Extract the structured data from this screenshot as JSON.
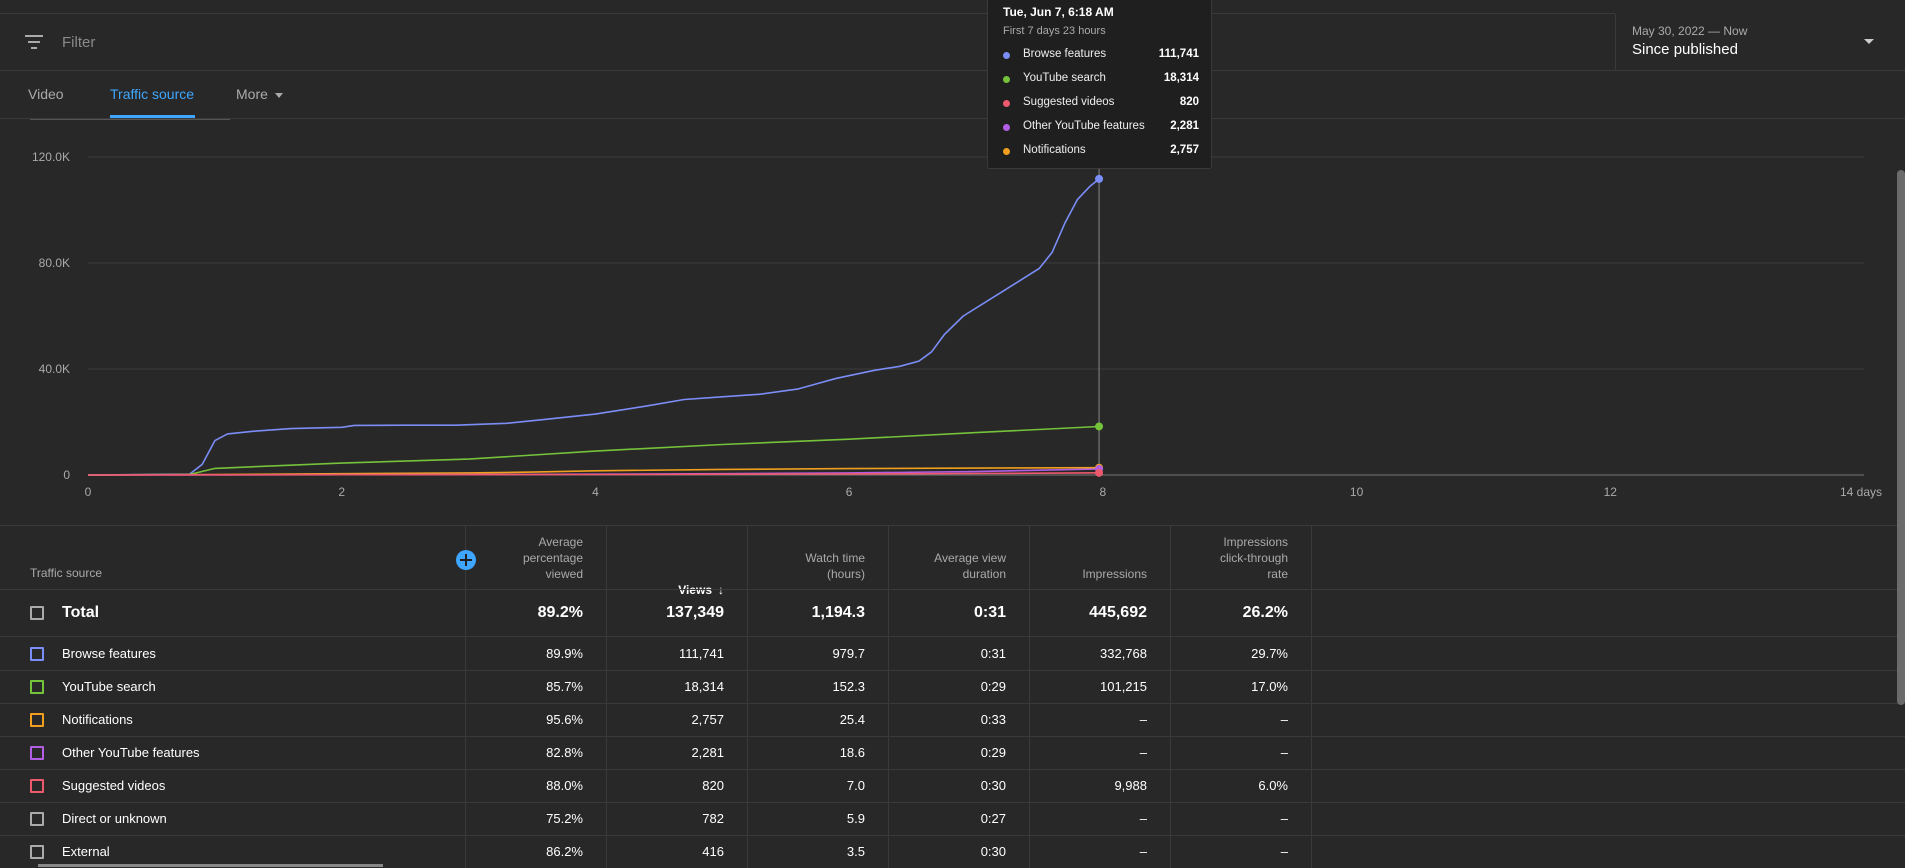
{
  "filter": {
    "placeholder": "Filter",
    "icon": "filter-icon"
  },
  "date_picker": {
    "range": "May 30, 2022 — Now",
    "label": "Since published",
    "icon": "chevron-down-icon"
  },
  "tabs": [
    {
      "label": "Video",
      "active": false
    },
    {
      "label": "Traffic source",
      "active": true
    },
    {
      "label": "More",
      "active": false
    }
  ],
  "colors": {
    "accent": "#3ea6ff",
    "browse_features": "#7b8df7",
    "youtube_search": "#75c23b",
    "suggested_videos": "#ed5a6e",
    "other_youtube_features": "#b25fe6",
    "notifications": "#f0a01e",
    "direct_or_unknown": "#9e9e9e",
    "external": "#9e9e9e"
  },
  "tooltip": {
    "title": "Tue, Jun 7, 6:18 AM",
    "subtitle": "First 7 days 23 hours",
    "rows": [
      {
        "name": "Browse features",
        "value": "111,741",
        "color": "#7b8df7"
      },
      {
        "name": "YouTube search",
        "value": "18,314",
        "color": "#75c23b"
      },
      {
        "name": "Suggested videos",
        "value": "820",
        "color": "#ed5a6e"
      },
      {
        "name": "Other YouTube features",
        "value": "2,281",
        "color": "#b25fe6"
      },
      {
        "name": "Notifications",
        "value": "2,757",
        "color": "#f0a01e"
      }
    ]
  },
  "chart_data": {
    "type": "line",
    "x_range": [
      0,
      14
    ],
    "y_range": [
      0,
      120000
    ],
    "x_ticks": [
      "0",
      "2",
      "4",
      "6",
      "8",
      "10",
      "12",
      "14 days"
    ],
    "y_ticks": [
      "0",
      "40.0K",
      "80.0K",
      "120.0K"
    ],
    "grid": true,
    "hover_x": 7.97,
    "series": [
      {
        "name": "Browse features",
        "color": "#7b8df7",
        "points": [
          [
            0,
            0
          ],
          [
            0.8,
            300
          ],
          [
            0.9,
            4000
          ],
          [
            1.0,
            13000
          ],
          [
            1.1,
            15500
          ],
          [
            1.3,
            16500
          ],
          [
            1.6,
            17500
          ],
          [
            2.0,
            18000
          ],
          [
            2.1,
            18700
          ],
          [
            2.5,
            18800
          ],
          [
            2.9,
            18800
          ],
          [
            3.3,
            19500
          ],
          [
            3.6,
            21000
          ],
          [
            4.0,
            23000
          ],
          [
            4.4,
            26000
          ],
          [
            4.7,
            28500
          ],
          [
            5.0,
            29500
          ],
          [
            5.3,
            30500
          ],
          [
            5.6,
            32500
          ],
          [
            5.9,
            36500
          ],
          [
            6.2,
            39500
          ],
          [
            6.4,
            41000
          ],
          [
            6.55,
            43000
          ],
          [
            6.65,
            46500
          ],
          [
            6.75,
            53000
          ],
          [
            6.9,
            60000
          ],
          [
            7.2,
            69000
          ],
          [
            7.4,
            75000
          ],
          [
            7.5,
            78000
          ],
          [
            7.6,
            84000
          ],
          [
            7.7,
            95000
          ],
          [
            7.8,
            104000
          ],
          [
            7.9,
            109000
          ],
          [
            7.97,
            111741
          ]
        ]
      },
      {
        "name": "YouTube search",
        "color": "#75c23b",
        "points": [
          [
            0,
            0
          ],
          [
            0.8,
            200
          ],
          [
            1.0,
            2500
          ],
          [
            1.5,
            3500
          ],
          [
            2.0,
            4500
          ],
          [
            3.0,
            6000
          ],
          [
            4.0,
            9000
          ],
          [
            5.0,
            11500
          ],
          [
            6.0,
            13500
          ],
          [
            7.0,
            16000
          ],
          [
            7.97,
            18314
          ]
        ]
      },
      {
        "name": "Notifications",
        "color": "#f0a01e",
        "points": [
          [
            0,
            0
          ],
          [
            1.0,
            200
          ],
          [
            2.0,
            500
          ],
          [
            3.0,
            800
          ],
          [
            3.5,
            1100
          ],
          [
            4.0,
            1600
          ],
          [
            5.0,
            2100
          ],
          [
            6.0,
            2400
          ],
          [
            7.0,
            2600
          ],
          [
            7.97,
            2757
          ]
        ]
      },
      {
        "name": "Other YouTube features",
        "color": "#b25fe6",
        "points": [
          [
            0,
            0
          ],
          [
            2.0,
            100
          ],
          [
            4.0,
            300
          ],
          [
            5.0,
            500
          ],
          [
            6.0,
            800
          ],
          [
            7.0,
            1300
          ],
          [
            7.5,
            1800
          ],
          [
            7.97,
            2281
          ]
        ]
      },
      {
        "name": "Suggested videos",
        "color": "#ed5a6e",
        "points": [
          [
            0,
            0
          ],
          [
            2.0,
            100
          ],
          [
            4.0,
            200
          ],
          [
            5.0,
            300
          ],
          [
            6.0,
            400
          ],
          [
            7.0,
            550
          ],
          [
            7.97,
            820
          ]
        ]
      }
    ]
  },
  "table": {
    "columns": [
      {
        "label": "Traffic source"
      },
      {
        "label": "Average\npercentage\nviewed"
      },
      {
        "label": "Views"
      },
      {
        "label": "Watch time\n(hours)"
      },
      {
        "label": "Average view\nduration"
      },
      {
        "label": "Impressions"
      },
      {
        "label": "Impressions\nclick-through\nrate"
      }
    ],
    "sort_icon": "arrow-down-icon",
    "total": {
      "name": "Total",
      "cells": [
        "89.2%",
        "137,349",
        "1,194.3",
        "0:31",
        "445,692",
        "26.2%"
      ]
    },
    "rows": [
      {
        "name": "Browse features",
        "color": "#7b8df7",
        "cells": [
          "89.9%",
          "111,741",
          "979.7",
          "0:31",
          "332,768",
          "29.7%"
        ]
      },
      {
        "name": "YouTube search",
        "color": "#75c23b",
        "cells": [
          "85.7%",
          "18,314",
          "152.3",
          "0:29",
          "101,215",
          "17.0%"
        ]
      },
      {
        "name": "Notifications",
        "color": "#f0a01e",
        "cells": [
          "95.6%",
          "2,757",
          "25.4",
          "0:33",
          "–",
          "–"
        ]
      },
      {
        "name": "Other YouTube features",
        "color": "#b25fe6",
        "cells": [
          "82.8%",
          "2,281",
          "18.6",
          "0:29",
          "–",
          "–"
        ]
      },
      {
        "name": "Suggested videos",
        "color": "#ed5a6e",
        "cells": [
          "88.0%",
          "820",
          "7.0",
          "0:30",
          "9,988",
          "6.0%"
        ]
      },
      {
        "name": "Direct or unknown",
        "color": "#9e9e9e",
        "cells": [
          "75.2%",
          "782",
          "5.9",
          "0:27",
          "–",
          "–"
        ]
      },
      {
        "name": "External",
        "color": "#9e9e9e",
        "cells": [
          "86.2%",
          "416",
          "3.5",
          "0:30",
          "–",
          "–"
        ]
      }
    ]
  }
}
